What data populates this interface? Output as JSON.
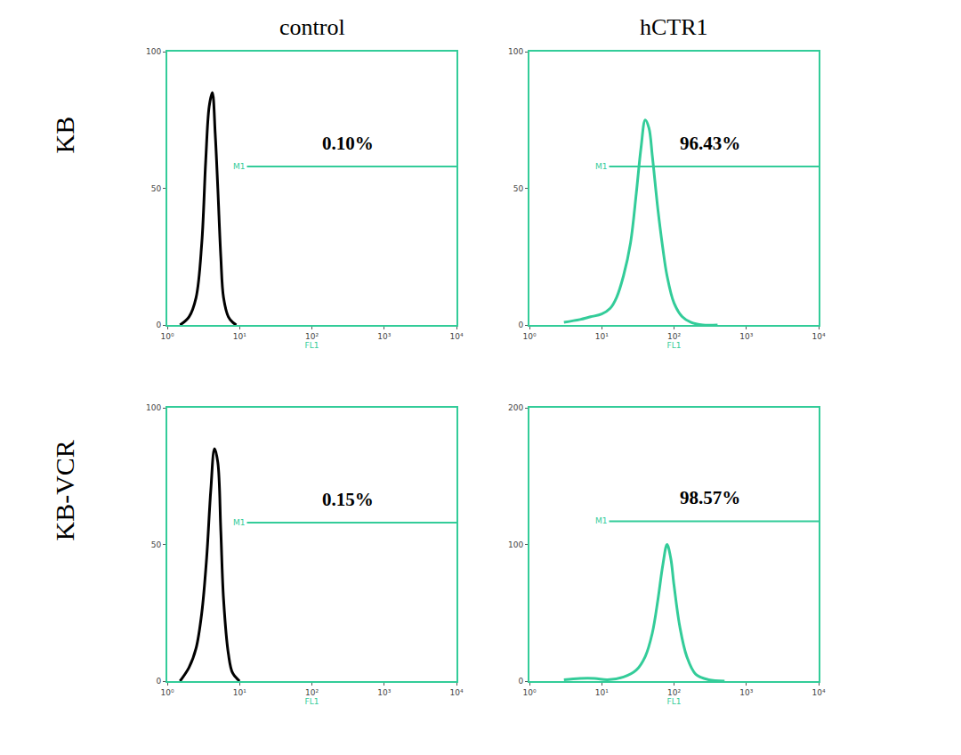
{
  "chart_data": [
    {
      "type": "line",
      "title": "control",
      "ylabel": "KB",
      "xlabel": "FL1",
      "log": "x",
      "grid": false,
      "color": "#000000",
      "x": [
        1.5,
        2,
        2.5,
        3,
        3.4,
        3.8,
        4.2,
        4.6,
        5,
        5.5,
        6,
        7,
        8,
        9
      ],
      "values": [
        0,
        3,
        10,
        30,
        60,
        80,
        85,
        70,
        50,
        25,
        10,
        3,
        1,
        0
      ],
      "xlim": [
        1,
        10000
      ],
      "xticks": [
        {
          "value": 1,
          "label": "10⁰"
        },
        {
          "value": 10,
          "label": "10¹"
        },
        {
          "value": 100,
          "label": "10²"
        },
        {
          "value": 1000,
          "label": "10³"
        },
        {
          "value": 10000,
          "label": "10⁴"
        }
      ],
      "ylim": [
        0,
        100
      ],
      "yticks": [
        0,
        50,
        100
      ],
      "gate": {
        "label": "M1",
        "x": [
          10,
          10000
        ],
        "y": 58
      },
      "annotations": [
        "0.10%"
      ]
    },
    {
      "type": "line",
      "title": "hCTR1",
      "xlabel": "FL1",
      "log": "x",
      "grid": false,
      "color": "#33cc99",
      "x": [
        3,
        5,
        7,
        10,
        13,
        16,
        20,
        25,
        30,
        35,
        40,
        45,
        50,
        60,
        70,
        80,
        100,
        130,
        170,
        250,
        400
      ],
      "values": [
        1,
        2,
        3,
        4,
        6,
        10,
        18,
        30,
        48,
        65,
        75,
        72,
        62,
        42,
        28,
        18,
        8,
        3,
        1,
        0,
        0
      ],
      "xlim": [
        1,
        10000
      ],
      "xticks": [
        {
          "value": 1,
          "label": "10⁰"
        },
        {
          "value": 10,
          "label": "10¹"
        },
        {
          "value": 100,
          "label": "10²"
        },
        {
          "value": 1000,
          "label": "10³"
        },
        {
          "value": 10000,
          "label": "10⁴"
        }
      ],
      "ylim": [
        0,
        100
      ],
      "yticks": [
        0,
        50,
        100
      ],
      "gate": {
        "label": "M1",
        "x": [
          10,
          10000
        ],
        "y": 58
      },
      "annotations": [
        "96.43%"
      ]
    },
    {
      "type": "line",
      "ylabel": "KB-VCR",
      "xlabel": "FL1",
      "log": "x",
      "grid": false,
      "color": "#000000",
      "x": [
        1.5,
        2,
        2.5,
        3,
        3.5,
        4,
        4.5,
        5,
        5.5,
        6,
        7,
        8,
        10
      ],
      "values": [
        0,
        5,
        12,
        25,
        45,
        70,
        85,
        80,
        55,
        30,
        10,
        3,
        0
      ],
      "xlim": [
        1,
        10000
      ],
      "xticks": [
        {
          "value": 1,
          "label": "10⁰"
        },
        {
          "value": 10,
          "label": "10¹"
        },
        {
          "value": 100,
          "label": "10²"
        },
        {
          "value": 1000,
          "label": "10³"
        },
        {
          "value": 10000,
          "label": "10⁴"
        }
      ],
      "ylim": [
        0,
        100
      ],
      "yticks": [
        0,
        50,
        100
      ],
      "gate": {
        "label": "M1",
        "x": [
          10,
          10000
        ],
        "y": 58
      },
      "annotations": [
        "0.15%"
      ]
    },
    {
      "type": "line",
      "xlabel": "FL1",
      "log": "x",
      "grid": false,
      "color": "#33cc99",
      "x": [
        3,
        5,
        8,
        12,
        20,
        30,
        40,
        50,
        60,
        70,
        80,
        90,
        100,
        120,
        150,
        200,
        300,
        500
      ],
      "values": [
        1,
        2,
        2,
        1,
        3,
        8,
        18,
        35,
        60,
        85,
        100,
        90,
        70,
        40,
        18,
        5,
        1,
        0
      ],
      "xlim": [
        1,
        10000
      ],
      "xticks": [
        {
          "value": 1,
          "label": "10⁰"
        },
        {
          "value": 10,
          "label": "10¹"
        },
        {
          "value": 100,
          "label": "10²"
        },
        {
          "value": 1000,
          "label": "10³"
        },
        {
          "value": 10000,
          "label": "10⁴"
        }
      ],
      "ylim": [
        0,
        200
      ],
      "yticks": [
        0,
        100,
        200
      ],
      "gate": {
        "label": "M1",
        "x": [
          10,
          10000
        ],
        "y": 117
      },
      "annotations": [
        "98.57%"
      ]
    }
  ]
}
